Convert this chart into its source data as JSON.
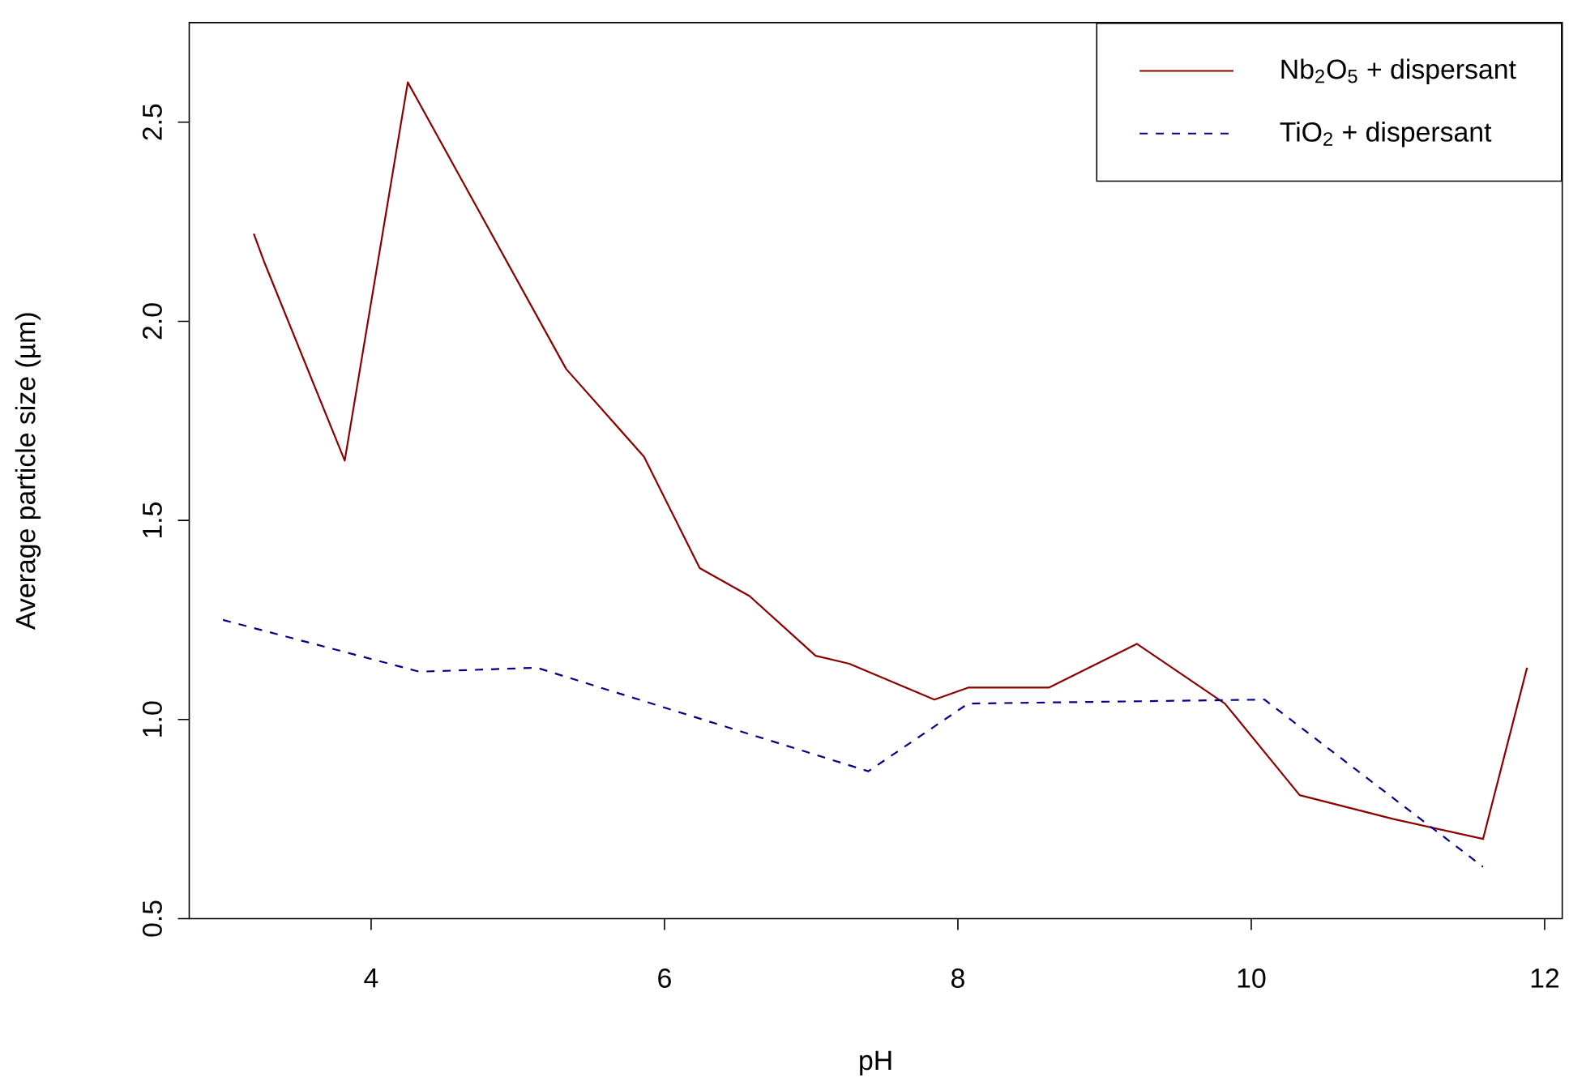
{
  "chart_data": {
    "type": "line",
    "xlabel": "pH",
    "ylabel": "Average particle size (µm)",
    "xlim": [
      2.76,
      12.12
    ],
    "ylim": [
      0.5,
      2.75
    ],
    "xticks": [
      4,
      6,
      8,
      10,
      12
    ],
    "yticks": [
      0.5,
      {
        "value": 1,
        "label": "1.0"
      },
      1.5,
      {
        "value": 2,
        "label": "2.0"
      },
      2.5
    ],
    "grid": false,
    "legend": "top right",
    "marker": "none",
    "series": [
      {
        "name": "Nb$_{2}$O$_{5}$ + dispersant",
        "color": "#8b0000",
        "line_style": "solid",
        "x": [
          3.2,
          3.27,
          3.82,
          4.25,
          5.33,
          5.86,
          6.24,
          6.58,
          7.03,
          7.26,
          7.84,
          8.07,
          8.62,
          9.22,
          9.82,
          10.33,
          10.97,
          11.58,
          11.88
        ],
        "values": [
          2.22,
          2.15,
          1.65,
          2.6,
          1.88,
          1.66,
          1.38,
          1.31,
          1.16,
          1.14,
          1.05,
          1.08,
          1.08,
          1.19,
          1.04,
          0.81,
          0.75,
          0.7,
          1.13
        ]
      },
      {
        "name": "TiO$_{2}$ + dispersant",
        "color": "#00008b",
        "line_style": "dashed",
        "x": [
          2.99,
          4.33,
          5.13,
          7.39,
          8.07,
          10.09,
          11.58
        ],
        "values": [
          1.25,
          1.12,
          1.13,
          0.87,
          1.04,
          1.05,
          0.63
        ]
      }
    ]
  }
}
